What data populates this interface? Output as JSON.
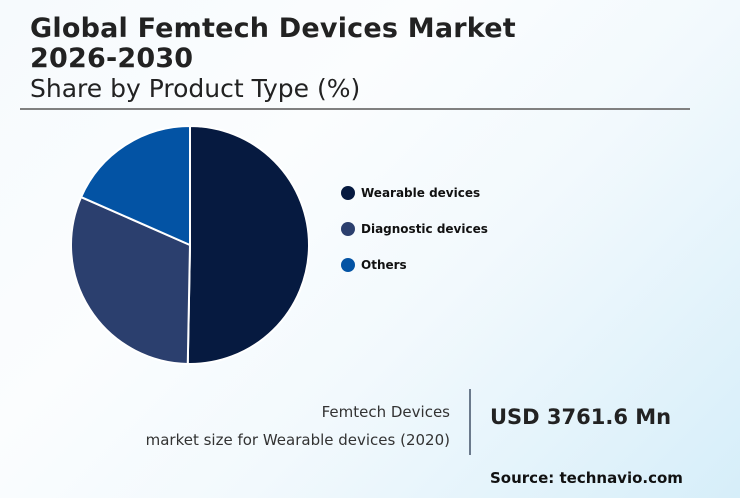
{
  "header": {
    "title_line1": "Global Femtech Devices Market",
    "title_line2": "2026-2030",
    "subtitle": "Share by Product Type (%)"
  },
  "chart_data": {
    "type": "pie",
    "title": "Global Femtech Devices Market 2026-2030",
    "subtitle": "Share by Product Type (%)",
    "categories": [
      "Wearable devices",
      "Diagnostic devices",
      "Others"
    ],
    "values": [
      50.3,
      31.3,
      18.4
    ],
    "colors": [
      "#061a40",
      "#2b3f6e",
      "#0353a4"
    ],
    "start_angle_deg": 0,
    "direction": "clockwise",
    "legend_position": "right"
  },
  "legend": {
    "items": [
      {
        "label": "Wearable devices",
        "color": "#061a40"
      },
      {
        "label": "Diagnostic devices",
        "color": "#2b3f6e"
      },
      {
        "label": "Others",
        "color": "#0353a4"
      }
    ]
  },
  "stat": {
    "label_line1": "Femtech Devices",
    "label_line2": "market size for Wearable devices (2020)",
    "value": "USD 3761.6 Mn"
  },
  "footer": {
    "source": "Source: technavio.com"
  }
}
